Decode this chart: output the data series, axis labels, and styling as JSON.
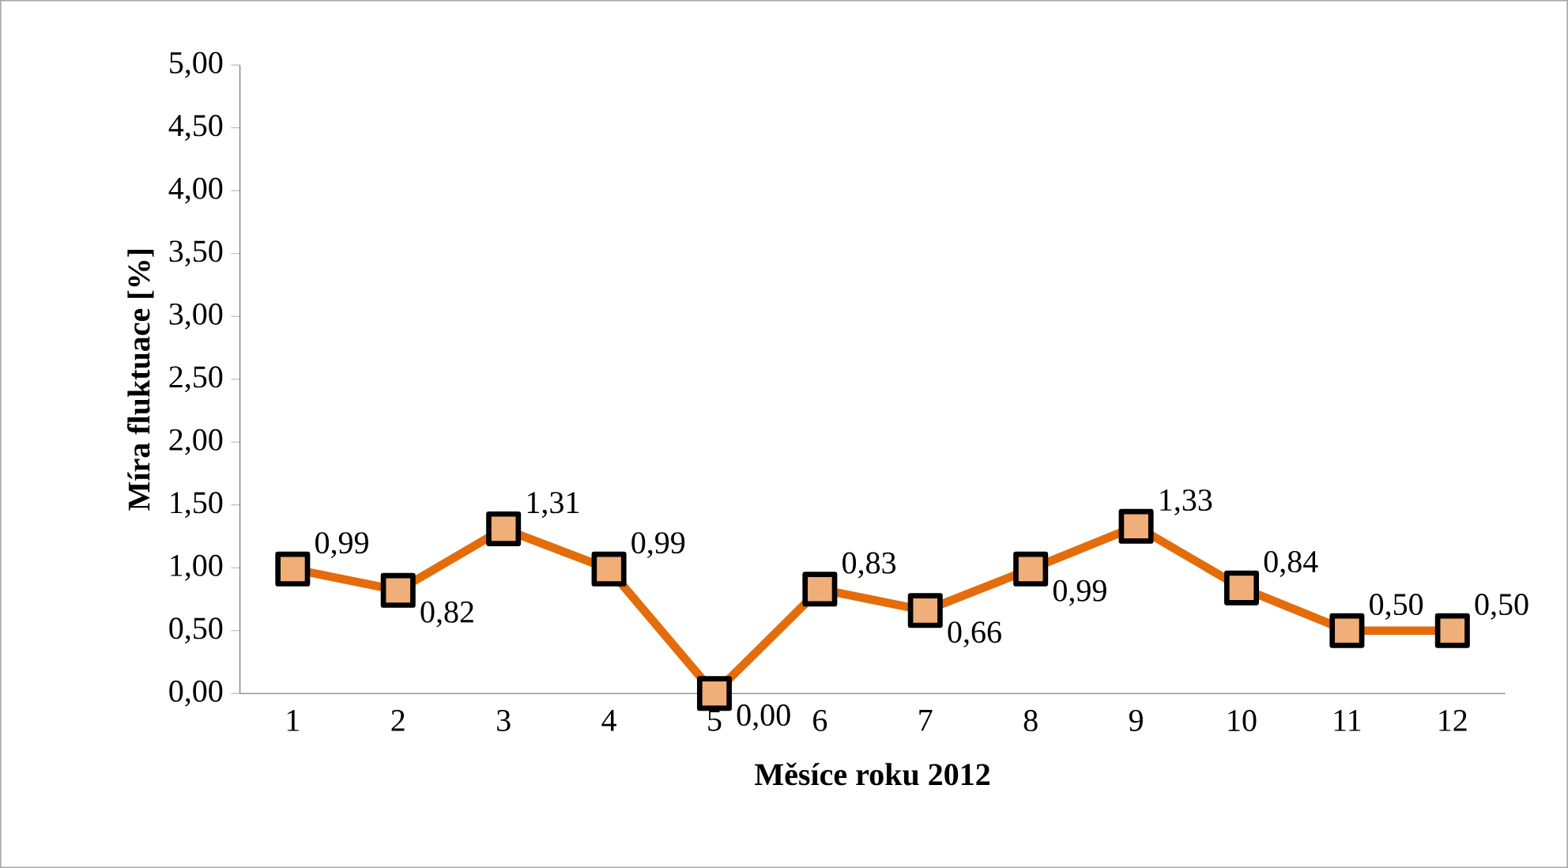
{
  "chart_data": {
    "type": "line",
    "xlabel": "Měsíce roku 2012",
    "ylabel": "Míra fluktuace [%]",
    "categories": [
      "1",
      "2",
      "3",
      "4",
      "5",
      "6",
      "7",
      "8",
      "9",
      "10",
      "11",
      "12"
    ],
    "series": [
      {
        "color": "#e46c0a",
        "values": [
          0.99,
          0.82,
          1.31,
          0.99,
          0.0,
          0.83,
          0.66,
          0.99,
          1.33,
          0.84,
          0.5,
          0.5
        ],
        "value_labels": [
          "0,99",
          "0,82",
          "1,31",
          "0,99",
          "0,00",
          "0,83",
          "0,66",
          "0,99",
          "1,33",
          "0,84",
          "0,50",
          "0,50"
        ]
      }
    ],
    "ylim": [
      0,
      5
    ],
    "yticks": [
      {
        "value": 0,
        "label": "0,00"
      },
      {
        "value": 0.5,
        "label": "0,50"
      },
      {
        "value": 1,
        "label": "1,00"
      },
      {
        "value": 1.5,
        "label": "1,50"
      },
      {
        "value": 2,
        "label": "2,00"
      },
      {
        "value": 2.5,
        "label": "2,50"
      },
      {
        "value": 3,
        "label": "3,00"
      },
      {
        "value": 3.5,
        "label": "3,50"
      },
      {
        "value": 4,
        "label": "4,00"
      },
      {
        "value": 4.5,
        "label": "4,50"
      },
      {
        "value": 5,
        "label": "5,00"
      }
    ],
    "marker": "square",
    "line_style": "solid",
    "grid": false
  }
}
